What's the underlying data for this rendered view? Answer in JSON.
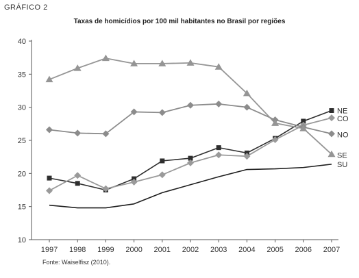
{
  "figure_label": "GRÁFICO 2",
  "source": "Fonte: Waiselfisz (2010).",
  "colors": {
    "NE": "#2e2e2e",
    "CO": "#9a9a9a",
    "NO": "#8c8c8c",
    "SE": "#959595",
    "SU": "#1e1e1e",
    "axis": "#555555"
  },
  "chart_data": {
    "type": "line",
    "title": "Taxas de homicídios por 100 mil habitantes no Brasil por regiões",
    "xlabel": "",
    "ylabel": "",
    "x": [
      "1997",
      "1998",
      "1999",
      "2000",
      "2001",
      "2002",
      "2003",
      "2004",
      "2005",
      "2006",
      "2007"
    ],
    "ylim": [
      10,
      40
    ],
    "yticks": [
      10,
      15,
      20,
      25,
      30,
      35,
      40
    ],
    "grid": false,
    "legend": "right-end-labels",
    "series": [
      {
        "name": "NE",
        "marker": "square",
        "values": [
          19.3,
          18.5,
          17.5,
          19.2,
          21.9,
          22.3,
          23.9,
          23.1,
          25.3,
          27.9,
          29.5
        ]
      },
      {
        "name": "CO",
        "marker": "diamond",
        "values": [
          17.4,
          19.7,
          17.7,
          18.7,
          19.8,
          21.6,
          22.8,
          22.6,
          25.1,
          27.3,
          28.4
        ]
      },
      {
        "name": "NO",
        "marker": "diamond",
        "values": [
          26.6,
          26.1,
          26.0,
          29.3,
          29.2,
          30.3,
          30.5,
          30.0,
          28.1,
          27.0,
          26.0
        ]
      },
      {
        "name": "SE",
        "marker": "triangle",
        "values": [
          34.2,
          35.9,
          37.4,
          36.6,
          36.6,
          36.7,
          36.1,
          32.1,
          27.6,
          26.8,
          22.9
        ]
      },
      {
        "name": "SU",
        "marker": "none",
        "values": [
          15.2,
          14.8,
          14.8,
          15.4,
          17.1,
          18.3,
          19.5,
          20.6,
          20.7,
          20.9,
          21.4
        ]
      }
    ]
  }
}
